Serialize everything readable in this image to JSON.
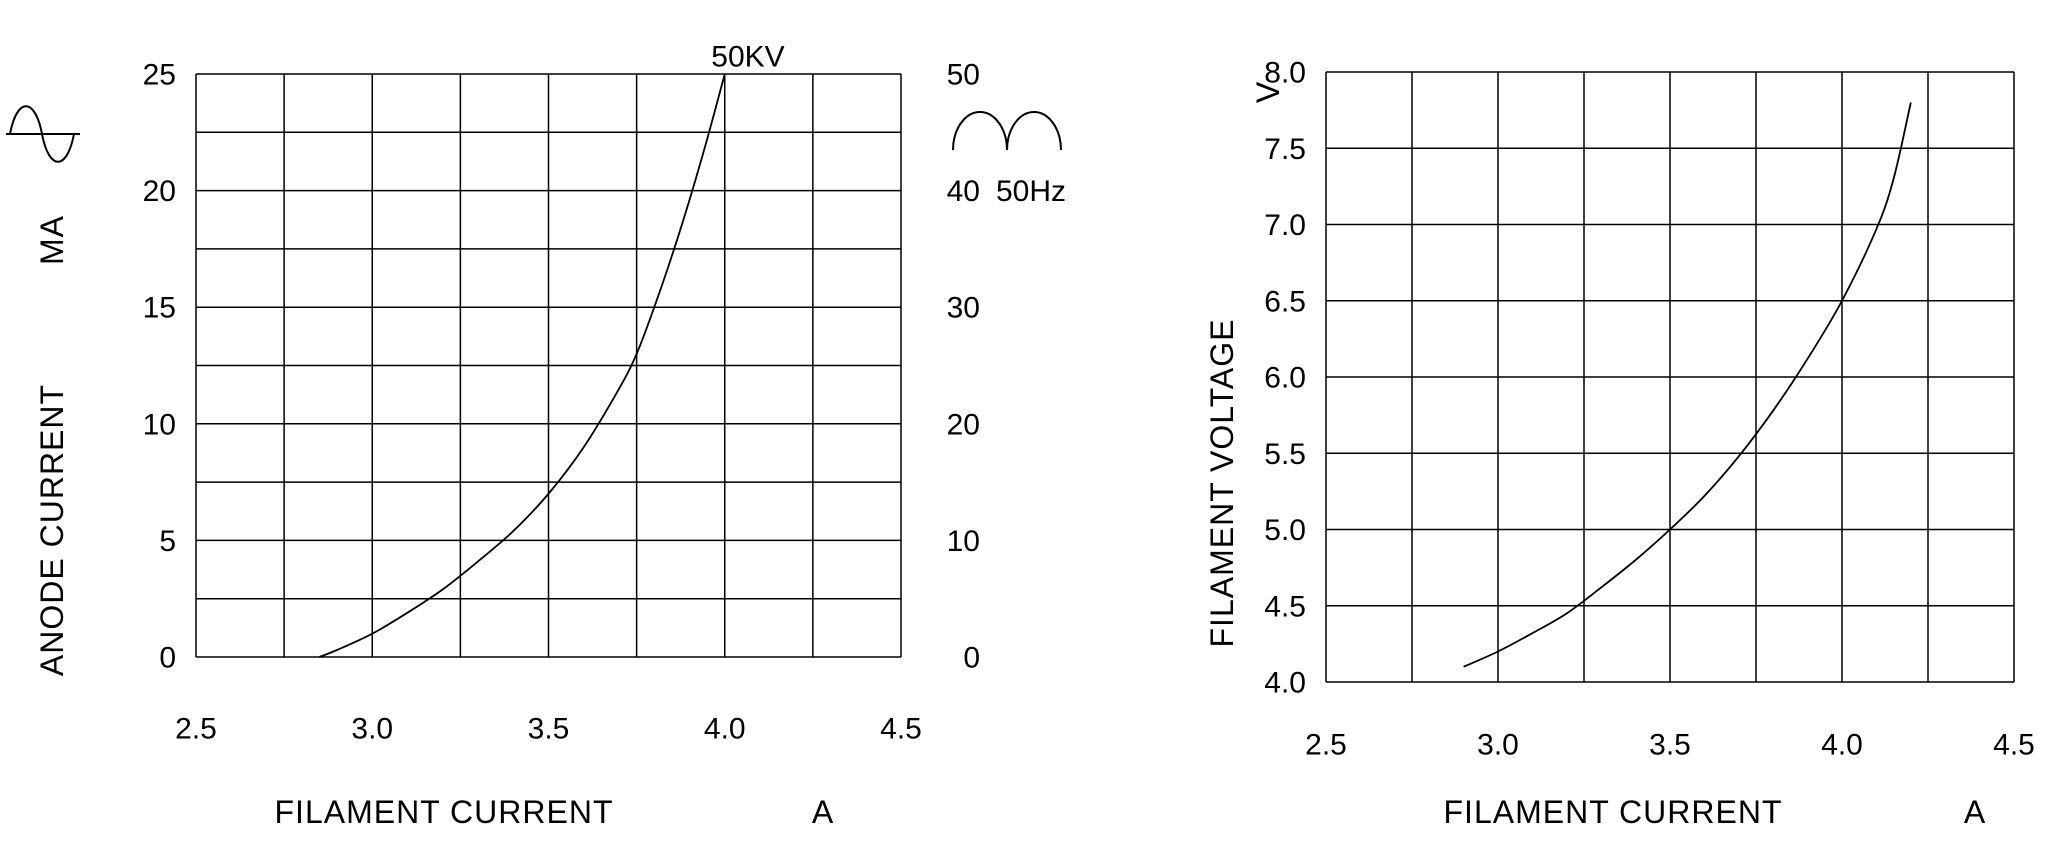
{
  "page": {
    "background": "#ffffff",
    "line_color": "#000000",
    "text_color": "#000000"
  },
  "chart_data": [
    {
      "type": "line",
      "name": "anode-current-vs-filament-current",
      "xlabel": "FILAMENT CURRENT",
      "x_unit": "A",
      "ylabel": "ANODE CURRENT",
      "y_unit": "MA",
      "grid": true,
      "xlim": [
        2.5,
        4.5
      ],
      "x_grid_step": 0.25,
      "x_tick_values": [
        2.5,
        3.0,
        3.5,
        4.0,
        4.5
      ],
      "x_tick_labels": [
        "2.5",
        "3.0",
        "3.5",
        "4.0",
        "4.5"
      ],
      "ylim": [
        0,
        25
      ],
      "y_grid_step": 2.5,
      "y_tick_values": [
        25,
        20,
        15,
        10,
        5,
        0
      ],
      "y_tick_labels": [
        "25",
        "20",
        "15",
        "10",
        "5",
        "0"
      ],
      "right_axis": {
        "ylim": [
          0,
          50
        ],
        "tick_values": [
          50,
          40,
          30,
          20,
          10,
          0
        ],
        "tick_labels": [
          "50",
          "40",
          "30",
          "20",
          "10",
          "0"
        ],
        "annotation": "50Hz",
        "annotation_value": 40
      },
      "icons": [
        "sine-wave-icon",
        "full-wave-rectified-icon"
      ],
      "series": [
        {
          "name": "50KV-curve",
          "label": "50KV",
          "points": [
            [
              2.85,
              0
            ],
            [
              2.9,
              0.3
            ],
            [
              3.0,
              1.0
            ],
            [
              3.1,
              1.9
            ],
            [
              3.2,
              2.9
            ],
            [
              3.3,
              4.1
            ],
            [
              3.4,
              5.4
            ],
            [
              3.5,
              7.0
            ],
            [
              3.6,
              9.0
            ],
            [
              3.7,
              11.5
            ],
            [
              3.75,
              13.0
            ],
            [
              3.8,
              15.0
            ],
            [
              3.85,
              17.2
            ],
            [
              3.9,
              19.6
            ],
            [
              3.95,
              22.2
            ],
            [
              4.0,
              25.0
            ]
          ]
        }
      ]
    },
    {
      "type": "line",
      "name": "filament-voltage-vs-filament-current",
      "xlabel": "FILAMENT CURRENT",
      "x_unit": "A",
      "ylabel": "FILAMENT VOLTAGE",
      "y_unit": "V",
      "grid": true,
      "xlim": [
        2.5,
        4.5
      ],
      "x_grid_step": 0.25,
      "x_tick_values": [
        2.5,
        3.0,
        3.5,
        4.0,
        4.5
      ],
      "x_tick_labels": [
        "2.5",
        "3.0",
        "3.5",
        "4.0",
        "4.5"
      ],
      "ylim": [
        4.0,
        8.0
      ],
      "y_grid_step": 0.5,
      "y_tick_values": [
        8.0,
        7.5,
        7.0,
        6.5,
        6.0,
        5.5,
        5.0,
        4.5,
        4.0
      ],
      "y_tick_labels": [
        "8.0",
        "7.5",
        "7.0",
        "6.5",
        "6.0",
        "5.5",
        "5.0",
        "4.5",
        "4.0"
      ],
      "series": [
        {
          "name": "filament-voltage-curve",
          "label": "",
          "points": [
            [
              2.9,
              4.1
            ],
            [
              3.0,
              4.2
            ],
            [
              3.1,
              4.32
            ],
            [
              3.2,
              4.45
            ],
            [
              3.3,
              4.62
            ],
            [
              3.4,
              4.8
            ],
            [
              3.5,
              5.0
            ],
            [
              3.6,
              5.22
            ],
            [
              3.7,
              5.48
            ],
            [
              3.8,
              5.78
            ],
            [
              3.9,
              6.12
            ],
            [
              4.0,
              6.5
            ],
            [
              4.1,
              6.97
            ],
            [
              4.15,
              7.3
            ],
            [
              4.2,
              7.8
            ]
          ]
        }
      ]
    }
  ]
}
